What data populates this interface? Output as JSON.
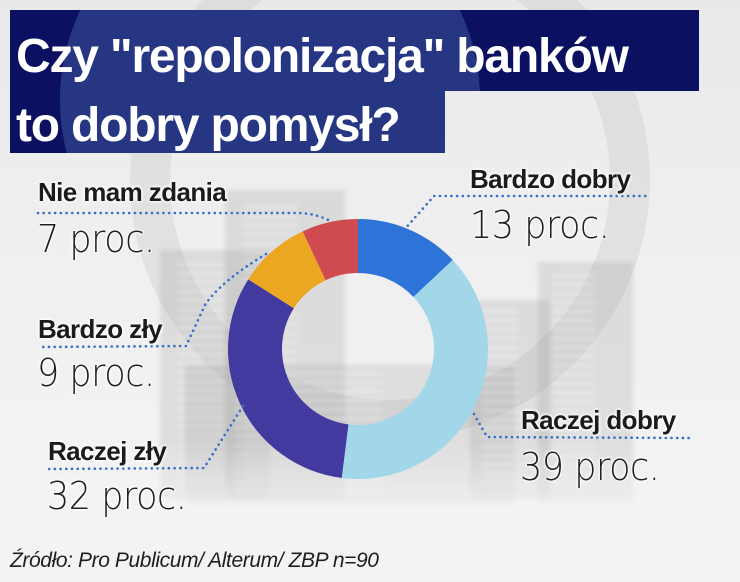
{
  "title": {
    "line1": "Czy \"repolonizacja\" banków",
    "line2": "to dobry pomysł?"
  },
  "labels": {
    "bardzo_dobry": {
      "label": "Bardzo dobry",
      "value": "13 proc."
    },
    "raczej_dobry": {
      "label": "Raczej dobry",
      "value": "39 proc."
    },
    "raczej_zly": {
      "label": "Raczej zły",
      "value": "32 proc."
    },
    "bardzo_zly": {
      "label": "Bardzo zły",
      "value": "9 proc."
    },
    "nie_mam_zdania": {
      "label": "Nie mam zdania",
      "value": "7 proc."
    }
  },
  "source": "Źródło: Pro Publicum/ Alterum/ ZBP n=90",
  "colors": {
    "title_bg": "#0b1160",
    "leader": "#3a6fc8",
    "bardzo_dobry": "#2e74d8",
    "raczej_dobry": "#a2d7ea",
    "raczej_zly": "#433aa0",
    "bardzo_zly": "#eba622",
    "nie_mam_zdania": "#d04b4f"
  },
  "chart_data": {
    "type": "pie",
    "variant": "donut",
    "title": "Czy \"repolonizacja\" banków to dobry pomysł?",
    "categories": [
      "Bardzo dobry",
      "Raczej dobry",
      "Raczej zły",
      "Bardzo zły",
      "Nie mam zdania"
    ],
    "values": [
      13,
      39,
      32,
      9,
      7
    ],
    "unit": "proc.",
    "colors": [
      "#2e74d8",
      "#a2d7ea",
      "#433aa0",
      "#eba622",
      "#d04b4f"
    ],
    "start_angle_deg": 0,
    "direction": "clockwise",
    "source": "Źródło: Pro Publicum/ Alterum/ ZBP n=90",
    "legend": "none (direct labels with dotted leader lines)"
  }
}
